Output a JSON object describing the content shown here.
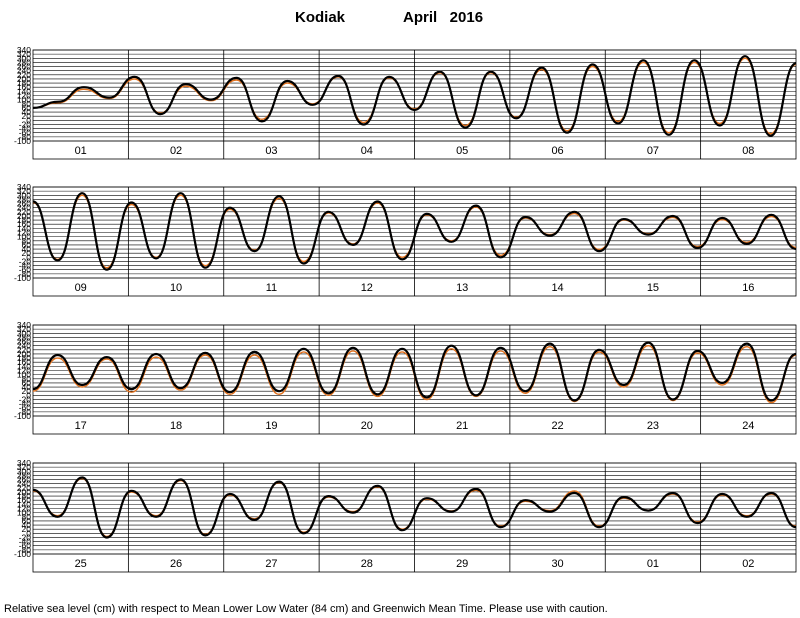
{
  "header": {
    "station": "Kodiak",
    "period": "April   2016"
  },
  "footer": {
    "note": "Relative sea level (cm) with respect to Mean Lower Low Water (84 cm) and Greenwich Mean Time. Please use with caution."
  },
  "colors": {
    "observed": "#000000",
    "predicted": "#e2711d",
    "grid": "#000000",
    "background": "#ffffff"
  },
  "chart_data": [
    {
      "type": "line",
      "ylim": [
        -100,
        340
      ],
      "grid": true,
      "yticks": [
        "340",
        "320",
        "300",
        "280",
        "260",
        "240",
        "220",
        "200",
        "180",
        "160",
        "140",
        "120",
        "100",
        "80",
        "60",
        "40",
        "20",
        "0",
        "-20",
        "-40",
        "-60",
        "-80",
        "-100"
      ],
      "x_day_labels": [
        "01",
        "02",
        "03",
        "04",
        "05",
        "06",
        "07",
        "08"
      ],
      "series": [
        {
          "values": [
            60,
            90,
            160,
            110,
            210,
            30,
            175,
            100,
            205,
            -5,
            190,
            75,
            215,
            -20,
            210,
            50,
            235,
            -35,
            235,
            10,
            255,
            -60,
            270,
            -15,
            290,
            -70,
            290,
            -25,
            310,
            -75,
            275
          ]
        },
        {
          "values": [
            60,
            85,
            150,
            105,
            200,
            35,
            165,
            95,
            195,
            5,
            180,
            80,
            210,
            -10,
            205,
            55,
            230,
            -25,
            230,
            15,
            245,
            -50,
            260,
            -5,
            280,
            -60,
            280,
            -15,
            300,
            -65,
            270
          ]
        }
      ]
    },
    {
      "type": "line",
      "ylim": [
        -100,
        340
      ],
      "grid": true,
      "yticks": [
        "340",
        "320",
        "300",
        "280",
        "260",
        "240",
        "220",
        "200",
        "180",
        "160",
        "140",
        "120",
        "100",
        "80",
        "60",
        "40",
        "20",
        "0",
        "-20",
        "-40",
        "-60",
        "-80",
        "-100"
      ],
      "x_day_labels": [
        "09",
        "10",
        "11",
        "12",
        "13",
        "14",
        "15",
        "16"
      ],
      "series": [
        {
          "values": [
            270,
            -15,
            310,
            -60,
            265,
            -5,
            310,
            -50,
            240,
            30,
            295,
            -30,
            220,
            60,
            270,
            -10,
            210,
            75,
            250,
            0,
            195,
            105,
            220,
            30,
            185,
            110,
            200,
            45,
            190,
            65,
            205,
            40
          ]
        },
        {
          "values": [
            265,
            -10,
            300,
            -50,
            255,
            0,
            300,
            -40,
            232,
            35,
            285,
            -20,
            215,
            65,
            262,
            0,
            205,
            80,
            243,
            10,
            190,
            110,
            212,
            38,
            180,
            114,
            193,
            52,
            183,
            72,
            197,
            48
          ]
        }
      ]
    },
    {
      "type": "line",
      "ylim": [
        -100,
        340
      ],
      "grid": true,
      "yticks": [
        "340",
        "320",
        "300",
        "280",
        "260",
        "240",
        "220",
        "200",
        "180",
        "160",
        "140",
        "120",
        "100",
        "80",
        "60",
        "40",
        "20",
        "0",
        "-20",
        "-40",
        "-60",
        "-80",
        "-100"
      ],
      "x_day_labels": [
        "17",
        "18",
        "19",
        "20",
        "21",
        "22",
        "23",
        "24"
      ],
      "series": [
        {
          "values": [
            30,
            195,
            50,
            185,
            30,
            200,
            35,
            205,
            15,
            210,
            20,
            225,
            10,
            230,
            5,
            225,
            -10,
            240,
            0,
            230,
            20,
            250,
            -25,
            220,
            50,
            255,
            -20,
            215,
            60,
            250,
            -25,
            200
          ]
        },
        {
          "values": [
            20,
            180,
            40,
            175,
            15,
            185,
            25,
            195,
            5,
            195,
            5,
            210,
            0,
            215,
            -5,
            210,
            -20,
            225,
            -5,
            215,
            10,
            235,
            -30,
            210,
            40,
            240,
            -25,
            205,
            50,
            235,
            -35,
            195
          ]
        }
      ]
    },
    {
      "type": "line",
      "ylim": [
        -100,
        340
      ],
      "grid": true,
      "yticks": [
        "340",
        "320",
        "300",
        "280",
        "260",
        "240",
        "220",
        "200",
        "180",
        "160",
        "140",
        "120",
        "100",
        "80",
        "60",
        "40",
        "20",
        "0",
        "-20",
        "-40",
        "-60",
        "-80",
        "-100"
      ],
      "x_day_labels": [
        "25",
        "26",
        "27",
        "28",
        "29",
        "30",
        "01",
        "02"
      ],
      "series": [
        {
          "values": [
            210,
            80,
            270,
            -20,
            205,
            80,
            260,
            -10,
            190,
            65,
            250,
            0,
            180,
            100,
            230,
            15,
            170,
            105,
            215,
            30,
            160,
            105,
            195,
            30,
            175,
            110,
            195,
            50,
            190,
            80,
            195,
            30
          ]
        },
        {
          "values": [
            205,
            85,
            265,
            -15,
            200,
            85,
            255,
            -5,
            185,
            70,
            245,
            5,
            175,
            105,
            225,
            20,
            165,
            108,
            208,
            35,
            155,
            110,
            205,
            35,
            170,
            112,
            190,
            55,
            185,
            85,
            190,
            35
          ]
        }
      ]
    }
  ]
}
